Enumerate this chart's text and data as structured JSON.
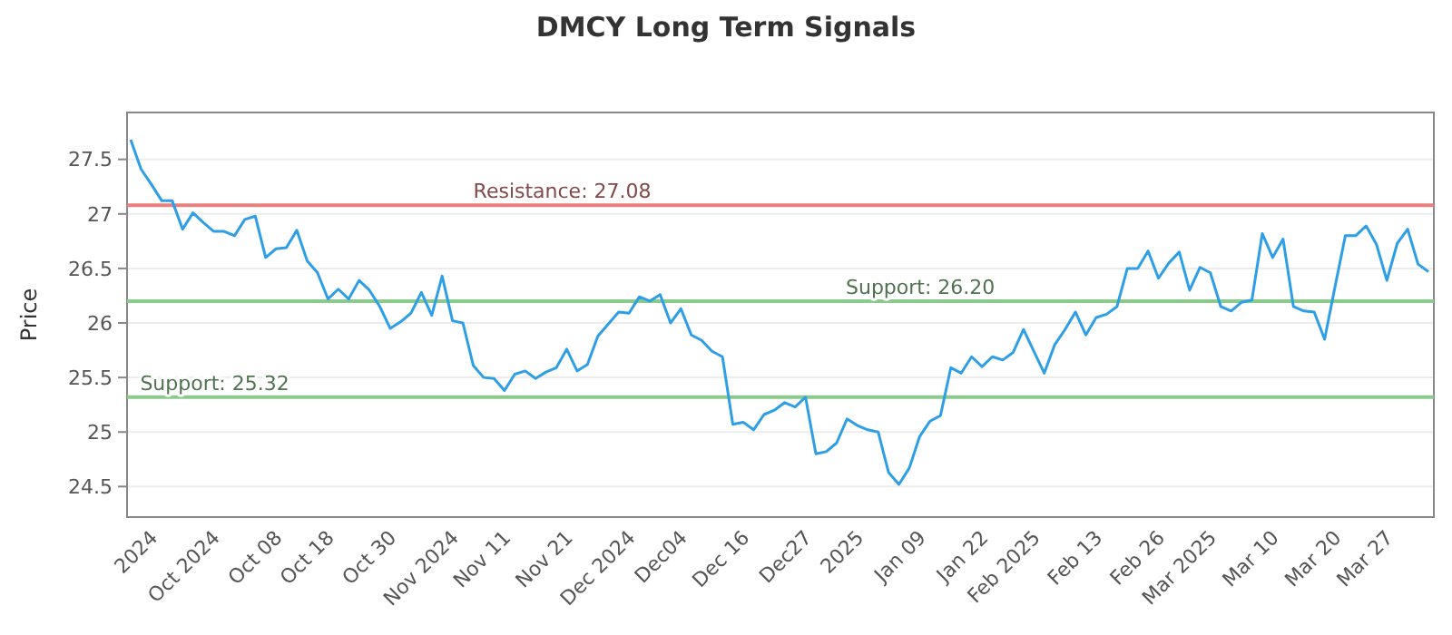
{
  "chart_data": {
    "type": "line",
    "title": "DMCY Long Term Signals",
    "ylabel": "Price",
    "categories": [
      null,
      null,
      "2024",
      null,
      null,
      null,
      null,
      null,
      "Oct 2024",
      null,
      null,
      null,
      null,
      null,
      "Oct 08",
      null,
      null,
      null,
      null,
      "Oct 18",
      null,
      null,
      null,
      null,
      null,
      "Oct 30",
      null,
      null,
      null,
      null,
      null,
      "Nov 2024",
      null,
      null,
      null,
      null,
      "Nov 11",
      null,
      null,
      null,
      null,
      null,
      "Nov 21",
      null,
      null,
      null,
      null,
      null,
      "Dec 2024",
      null,
      null,
      null,
      null,
      "Dec04",
      null,
      null,
      null,
      null,
      null,
      "Dec 16",
      null,
      null,
      null,
      null,
      null,
      "Dec27",
      null,
      null,
      null,
      null,
      "2025",
      null,
      null,
      null,
      null,
      null,
      "Jan 09",
      null,
      null,
      null,
      null,
      null,
      "Jan 22",
      null,
      null,
      null,
      null,
      "Feb 2025",
      null,
      null,
      null,
      null,
      null,
      "Feb 13",
      null,
      null,
      null,
      null,
      null,
      "Feb 26",
      null,
      null,
      null,
      null,
      "Mar 2025",
      null,
      null,
      null,
      null,
      null,
      "Mar 10",
      null,
      null,
      null,
      null,
      null,
      "Mar 20",
      null,
      null,
      null,
      null,
      "Mar 27",
      null,
      null,
      null,
      null
    ],
    "series": [
      {
        "color": "#2e9fe6",
        "values": [
          27.68,
          27.41,
          27.27,
          27.12,
          27.12,
          26.86,
          27.01,
          26.92,
          26.84,
          26.84,
          26.8,
          26.95,
          26.98,
          26.6,
          26.68,
          26.69,
          26.85,
          26.57,
          26.46,
          26.22,
          26.31,
          26.22,
          26.39,
          26.3,
          26.15,
          25.95,
          26.01,
          26.09,
          26.28,
          26.07,
          26.43,
          26.02,
          26.0,
          25.61,
          25.5,
          25.49,
          25.38,
          25.53,
          25.56,
          25.49,
          25.55,
          25.59,
          25.76,
          25.56,
          25.62,
          25.88,
          25.99,
          26.1,
          26.09,
          26.24,
          26.2,
          26.26,
          26.0,
          26.13,
          25.89,
          25.84,
          25.74,
          25.69,
          25.07,
          25.09,
          25.02,
          25.16,
          25.2,
          25.27,
          25.23,
          25.32,
          24.8,
          24.82,
          24.9,
          25.12,
          25.06,
          25.02,
          25.0,
          24.63,
          24.52,
          24.67,
          24.96,
          25.1,
          25.15,
          25.59,
          25.54,
          25.69,
          25.6,
          25.69,
          25.66,
          25.73,
          25.94,
          25.74,
          25.54,
          25.8,
          25.94,
          26.1,
          25.89,
          26.05,
          26.08,
          26.15,
          26.5,
          26.5,
          26.66,
          26.41,
          26.55,
          26.65,
          26.3,
          26.51,
          26.46,
          26.15,
          26.11,
          26.19,
          26.21,
          26.82,
          26.6,
          26.77,
          26.15,
          26.11,
          26.1,
          25.85,
          26.33,
          26.8,
          26.8,
          26.89,
          26.72,
          26.39,
          26.73,
          26.86,
          26.54,
          26.47
        ]
      }
    ],
    "ylim": [
      24.22,
      27.93
    ],
    "yticks": [
      24.5,
      25,
      25.5,
      26,
      26.5,
      27,
      27.5
    ],
    "grid": "y",
    "line_style": "solid",
    "marker": "none",
    "ref_lines": [
      {
        "axis": "y",
        "value": 27.08,
        "label": "Resistance: 27.08",
        "color": "#e88080"
      },
      {
        "axis": "y",
        "value": 26.2,
        "label": "Support: 26.20",
        "color": "#8cc98c"
      },
      {
        "axis": "y",
        "value": 25.32,
        "label": "Support: 25.32",
        "color": "#8cc98c"
      }
    ]
  }
}
